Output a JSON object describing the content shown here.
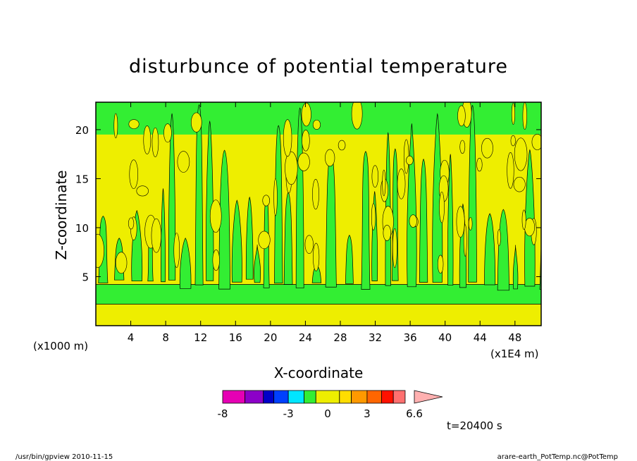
{
  "chart_data": {
    "type": "heatmap",
    "title": "disturbunce of potential temperature",
    "xlabel": "X-coordinate",
    "ylabel": "Z-coordinate",
    "x_unit_left": "(x1000 m)",
    "x_unit_right": "(x1E4 m)",
    "xlim": [
      0,
      51
    ],
    "ylim": [
      0,
      22.8
    ],
    "x_ticks": [
      4,
      8,
      12,
      16,
      20,
      24,
      28,
      32,
      36,
      40,
      44,
      48
    ],
    "y_ticks": [
      5,
      10,
      15,
      20
    ],
    "colorbar": {
      "levels": [
        -8,
        -7,
        -6,
        -5,
        -4,
        -3,
        -2,
        -1,
        0,
        1,
        2,
        3,
        4,
        5,
        6,
        6.6
      ],
      "labels": [
        "-8",
        "-3",
        "0",
        "3",
        "6.6"
      ],
      "label_values": [
        -8,
        -3,
        0,
        3,
        6.6
      ],
      "colors": [
        "#e600b4",
        "#8c00c8",
        "#0000c8",
        "#0040ff",
        "#00e6ff",
        "#33ee33",
        "#eeee00",
        "#ffdd00",
        "#ff9900",
        "#ff6600",
        "#ff1100",
        "#ff7070",
        "#ffb0b0"
      ]
    },
    "time_label": "t=20400 s",
    "field_colors": {
      "positive": "#eeee00",
      "negative": "#33ee33"
    }
  },
  "footer": {
    "left": "/usr/bin/gpview   2010-11-15",
    "right": "arare-earth_PotTemp.nc@PotTemp"
  }
}
